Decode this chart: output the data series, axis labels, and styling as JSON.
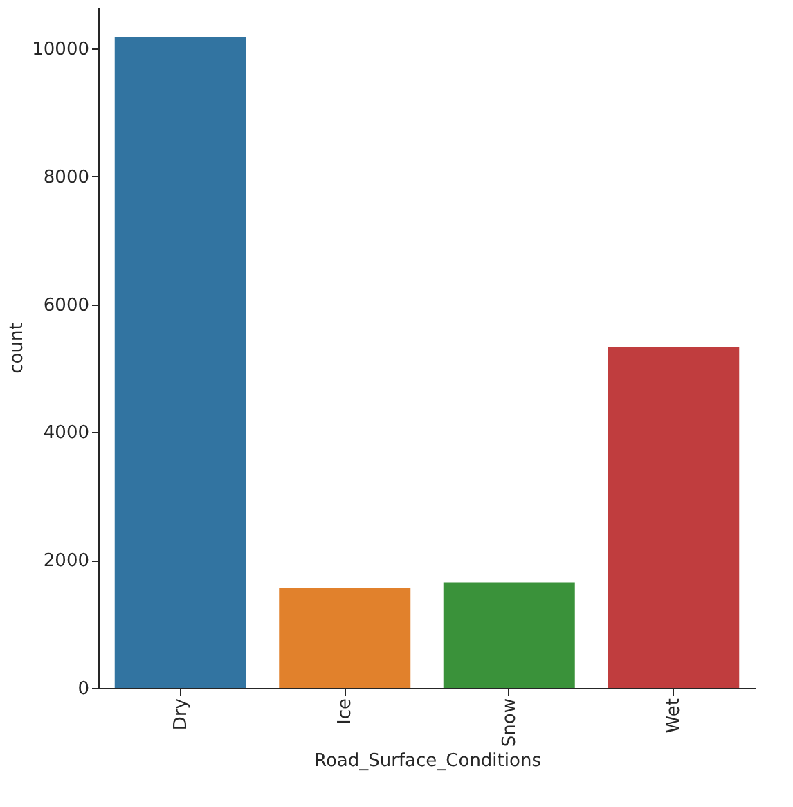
{
  "chart_data": {
    "type": "bar",
    "categories": [
      "Dry",
      "Ice",
      "Snow",
      "Wet"
    ],
    "values": [
      10180,
      1560,
      1650,
      5330
    ],
    "colors": [
      "#3274a1",
      "#e1812c",
      "#3a923a",
      "#c03d3e"
    ],
    "xlabel": "Road_Surface_Conditions",
    "ylabel": "count",
    "ylim": [
      0,
      10650
    ],
    "yticks": [
      0,
      2000,
      4000,
      6000,
      8000,
      10000
    ],
    "grid": false
  }
}
